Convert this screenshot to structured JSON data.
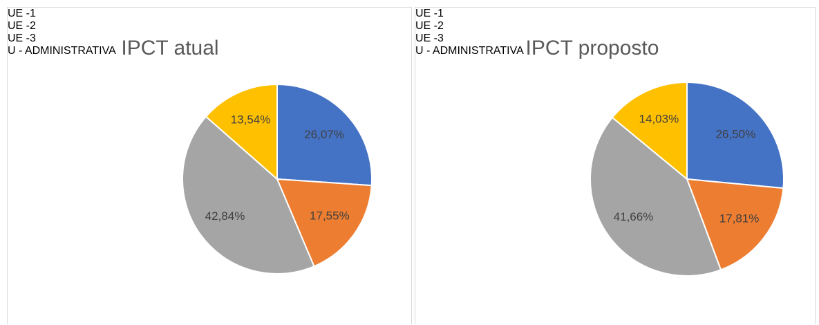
{
  "chart_data": [
    {
      "type": "pie",
      "title": "IPCT atual",
      "categories": [
        "UE -1",
        "UE -2",
        "UE -3",
        "U - ADMINISTRATIVA"
      ],
      "values": [
        26.07,
        17.55,
        42.84,
        13.54
      ],
      "value_labels": [
        "26,07%",
        "17,55%",
        "42,84%",
        "13,54%"
      ],
      "colors": [
        "#4472c4",
        "#ed7d31",
        "#a5a5a5",
        "#ffc000"
      ],
      "legend": "left"
    },
    {
      "type": "pie",
      "title": "IPCT proposto",
      "categories": [
        "UE -1",
        "UE -2",
        "UE -3",
        "U - ADMINISTRATIVA"
      ],
      "values": [
        26.5,
        17.81,
        41.66,
        14.03
      ],
      "value_labels": [
        "26,50%",
        "17,81%",
        "41,66%",
        "14,03%"
      ],
      "colors": [
        "#4472c4",
        "#ed7d31",
        "#a5a5a5",
        "#ffc000"
      ],
      "legend": "left"
    }
  ]
}
